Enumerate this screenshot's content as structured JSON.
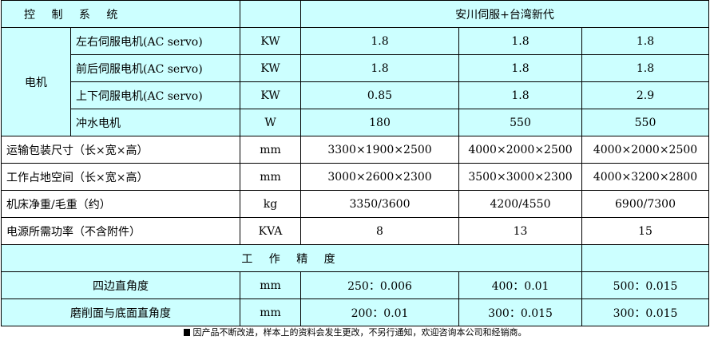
{
  "header": {
    "title": "控 制 系 统",
    "unit": "",
    "config": "安川伺服+台湾新代"
  },
  "motor": {
    "group": "电机",
    "rows": [
      {
        "name": "左右伺服电机(AC servo)",
        "unit": "KW",
        "v": [
          "1.8",
          "1.8",
          "1.8"
        ]
      },
      {
        "name": "前后伺服电机(AC servo)",
        "unit": "KW",
        "v": [
          "1.8",
          "1.8",
          "1.8"
        ]
      },
      {
        "name": "上下伺服电机(AC servo)",
        "unit": "KW",
        "v": [
          "0.85",
          "1.8",
          "2.9"
        ]
      },
      {
        "name": "冲水电机",
        "unit": "W",
        "v": [
          "180",
          "550",
          "550"
        ]
      }
    ]
  },
  "specs": [
    {
      "name": "运输包装尺寸（长×宽×高）",
      "unit": "mm",
      "v": [
        "3300×1900×2500",
        "4000×2000×2500",
        "4000×2000×2500"
      ]
    },
    {
      "name": "工作占地空间（长×宽×高）",
      "unit": "mm",
      "v": [
        "3000×2600×2300",
        "3500×3000×2300",
        "4000×3200×2800"
      ]
    },
    {
      "name": "机床净重/毛重（约）",
      "unit": "kg",
      "v": [
        "3350/3600",
        "4200/4550",
        "6900/7300"
      ]
    },
    {
      "name": "电源所需功率（不含附件）",
      "unit": "KVA",
      "v": [
        "8",
        "13",
        "15"
      ]
    }
  ],
  "precision": {
    "title": "工 作 精 度",
    "rows": [
      {
        "name": "四边直角度",
        "unit": "mm",
        "v": [
          "250：0.006",
          "400：0.01",
          "500：0.015"
        ]
      },
      {
        "name": "磨削面与底面直角度",
        "unit": "mm",
        "v": [
          "200：0.01",
          "300：0.015",
          "300：0.015"
        ]
      }
    ]
  },
  "footer": "因产品不断改进，样本上的资料会发生更改，不另行通知，欢迎咨询本公司和经销商。"
}
